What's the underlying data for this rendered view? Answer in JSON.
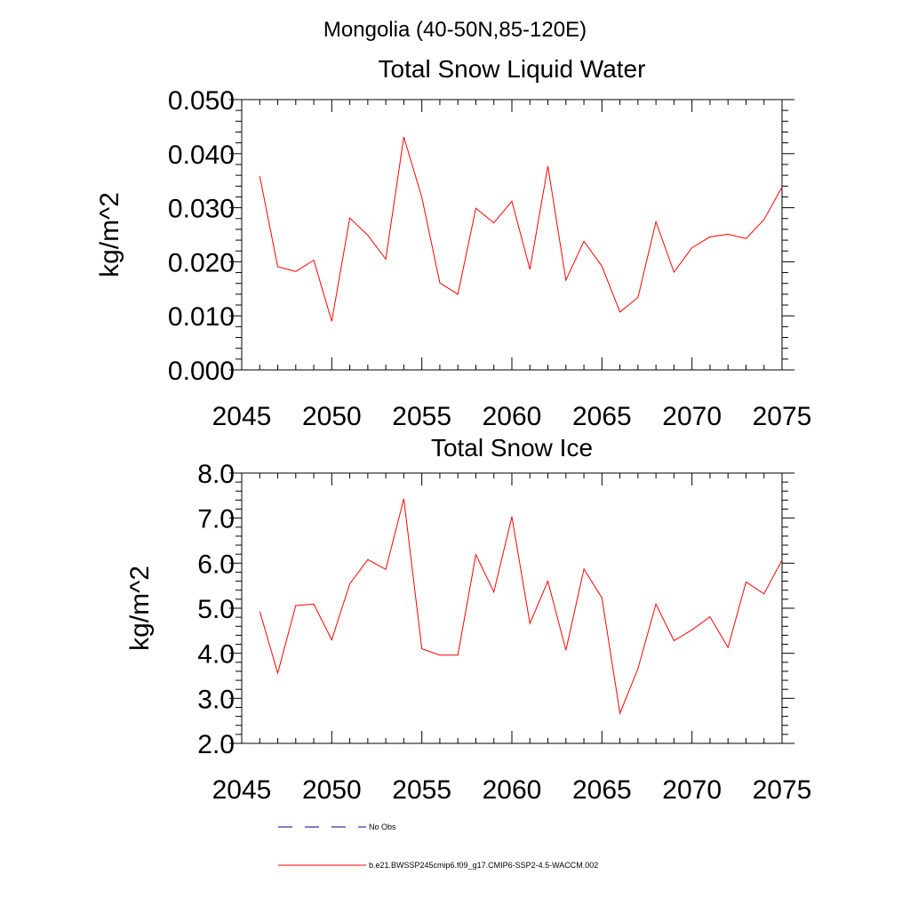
{
  "figure": {
    "main_title": "Mongolia (40-50N,85-120E)"
  },
  "chart_data": [
    {
      "type": "line",
      "title": "Total Snow Liquid Water",
      "xlabel": "",
      "ylabel": "kg/m^2",
      "xlim": [
        2045,
        2075
      ],
      "ylim": [
        0.0,
        0.05
      ],
      "xticks": [
        2045,
        2050,
        2055,
        2060,
        2065,
        2070,
        2075
      ],
      "xtick_labels": [
        "2045",
        "2050",
        "2055",
        "2060",
        "2065",
        "2070",
        "2075"
      ],
      "yticks": [
        0.0,
        0.01,
        0.02,
        0.03,
        0.04,
        0.05
      ],
      "ytick_labels": [
        "0.000",
        "0.010",
        "0.020",
        "0.030",
        "0.040",
        "0.050"
      ],
      "grid": false,
      "series": [
        {
          "name": "b.e21.BWSSP245cmip6.f09_g17.CMIP6-SSP2-4.5-WACCM.002",
          "color": "#ff0000",
          "x": [
            2046,
            2047,
            2048,
            2049,
            2050,
            2051,
            2052,
            2053,
            2054,
            2055,
            2056,
            2057,
            2058,
            2059,
            2060,
            2061,
            2062,
            2063,
            2064,
            2065,
            2066,
            2067,
            2068,
            2069,
            2070,
            2071,
            2072,
            2073,
            2074,
            2075
          ],
          "y": [
            0.0358,
            0.0191,
            0.0182,
            0.0203,
            0.009,
            0.0281,
            0.0249,
            0.0205,
            0.0431,
            0.0319,
            0.0161,
            0.014,
            0.0299,
            0.0272,
            0.0312,
            0.0186,
            0.0377,
            0.0166,
            0.0238,
            0.0192,
            0.0107,
            0.0134,
            0.0274,
            0.0181,
            0.0226,
            0.0246,
            0.0251,
            0.0243,
            0.0278,
            0.0338
          ]
        }
      ]
    },
    {
      "type": "line",
      "title": "Total Snow Ice",
      "xlabel": "",
      "ylabel": "kg/m^2",
      "xlim": [
        2045,
        2075
      ],
      "ylim": [
        2.0,
        8.0
      ],
      "xticks": [
        2045,
        2050,
        2055,
        2060,
        2065,
        2070,
        2075
      ],
      "xtick_labels": [
        "2045",
        "2050",
        "2055",
        "2060",
        "2065",
        "2070",
        "2075"
      ],
      "yticks": [
        2.0,
        3.0,
        4.0,
        5.0,
        6.0,
        7.0,
        8.0
      ],
      "ytick_labels": [
        "2.0",
        "3.0",
        "4.0",
        "5.0",
        "6.0",
        "7.0",
        "8.0"
      ],
      "grid": false,
      "series": [
        {
          "name": "b.e21.BWSSP245cmip6.f09_g17.CMIP6-SSP2-4.5-WACCM.002",
          "color": "#ff0000",
          "x": [
            2046,
            2047,
            2048,
            2049,
            2050,
            2051,
            2052,
            2053,
            2054,
            2055,
            2056,
            2057,
            2058,
            2059,
            2060,
            2061,
            2062,
            2063,
            2064,
            2065,
            2066,
            2067,
            2068,
            2069,
            2070,
            2071,
            2072,
            2073,
            2074,
            2075
          ],
          "y": [
            4.93,
            3.56,
            5.06,
            5.09,
            4.3,
            5.54,
            6.08,
            5.86,
            7.43,
            4.1,
            3.96,
            3.96,
            6.19,
            5.36,
            7.03,
            4.66,
            5.6,
            4.07,
            5.87,
            5.23,
            2.67,
            3.66,
            5.09,
            4.28,
            4.52,
            4.81,
            4.13,
            5.58,
            5.32,
            6.07
          ]
        }
      ]
    }
  ],
  "legend": {
    "placement": "bottom",
    "items": [
      {
        "label": "No Obs",
        "color": "#00008b",
        "style": "dashed"
      },
      {
        "label": "b.e21.BWSSP245cmip6.f09_g17.CMIP6-SSP2-4.5-WACCM.002",
        "color": "#ff0000",
        "style": "solid"
      }
    ]
  }
}
